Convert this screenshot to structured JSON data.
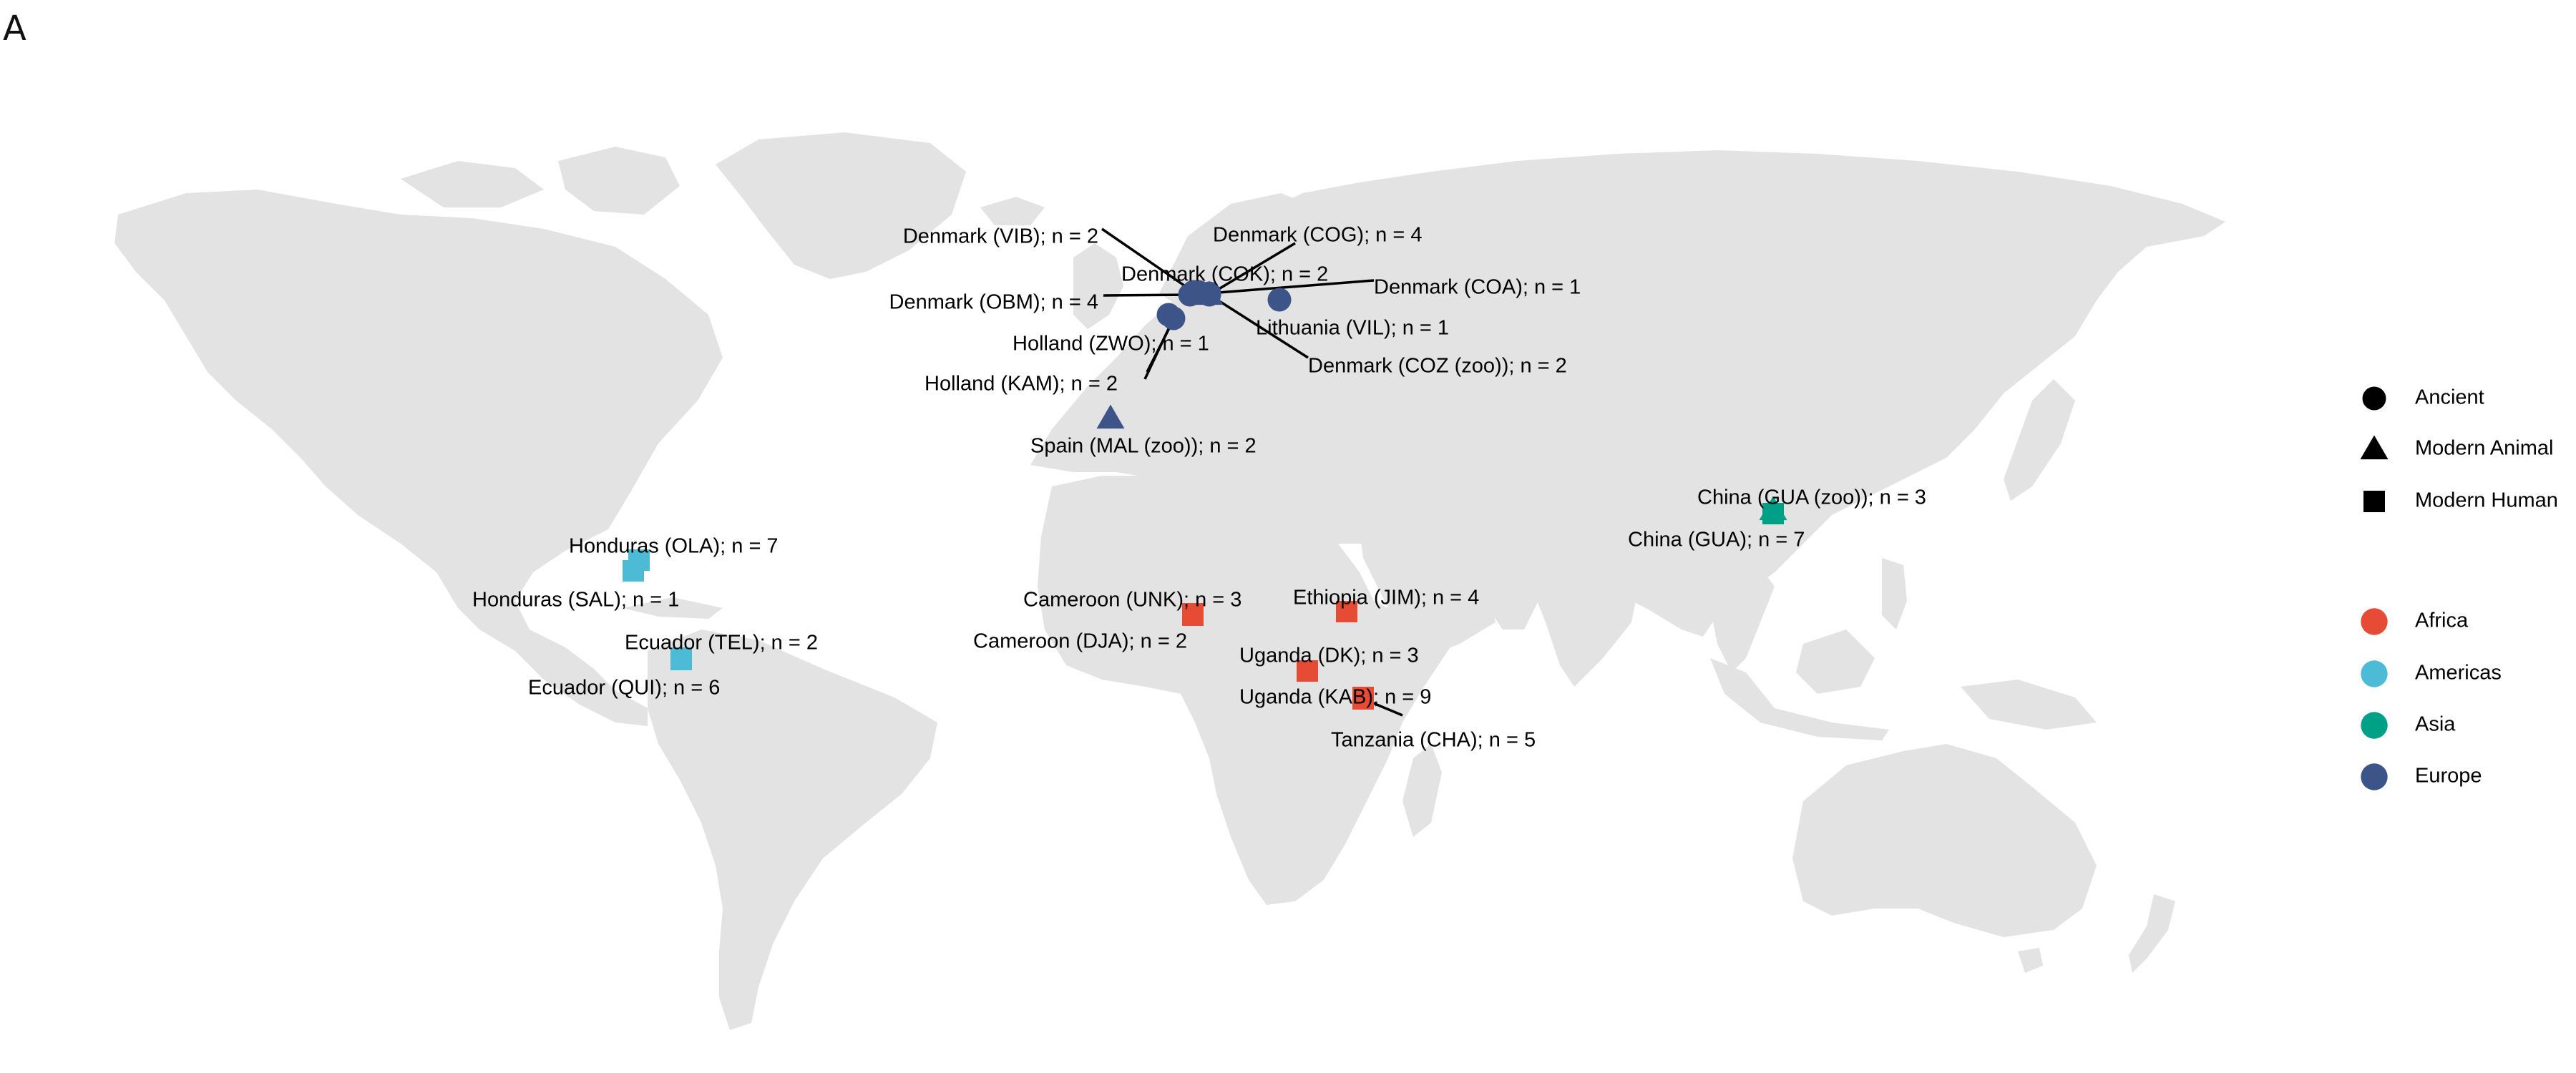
{
  "panel_label": "A",
  "colors": {
    "land": "#e3e3e3",
    "Africa": "#E64B35",
    "Americas": "#4DBBD5",
    "Asia": "#00A087",
    "Europe": "#3C5488",
    "legend_shape": "#000000"
  },
  "legend": {
    "shapes": [
      {
        "label": "Ancient",
        "shape": "circle"
      },
      {
        "label": "Modern Animal",
        "shape": "triangle"
      },
      {
        "label": "Modern Human",
        "shape": "square"
      }
    ],
    "regions": [
      {
        "label": "Africa",
        "color": "#E64B35"
      },
      {
        "label": "Americas",
        "color": "#4DBBD5"
      },
      {
        "label": "Asia",
        "color": "#00A087"
      },
      {
        "label": "Europe",
        "color": "#3C5488"
      }
    ]
  },
  "sites": [
    {
      "label": "Denmark (VIB); n = 2",
      "region": "Europe",
      "type": "Ancient"
    },
    {
      "label": "Denmark (COG); n = 4",
      "region": "Europe",
      "type": "Ancient"
    },
    {
      "label": "Denmark (COK); n = 2",
      "region": "Europe",
      "type": "Ancient"
    },
    {
      "label": "Denmark (COA); n = 1",
      "region": "Europe",
      "type": "Ancient"
    },
    {
      "label": "Denmark (OBM); n = 4",
      "region": "Europe",
      "type": "Ancient"
    },
    {
      "label": "Lithuania (VIL); n = 1",
      "region": "Europe",
      "type": "Ancient"
    },
    {
      "label": "Holland (ZWO); n = 1",
      "region": "Europe",
      "type": "Ancient"
    },
    {
      "label": "Denmark (COZ (zoo)); n = 2",
      "region": "Europe",
      "type": "Modern Animal"
    },
    {
      "label": "Holland (KAM); n = 2",
      "region": "Europe",
      "type": "Ancient"
    },
    {
      "label": "Spain (MAL (zoo)); n = 2",
      "region": "Europe",
      "type": "Modern Animal"
    },
    {
      "label": "China (GUA (zoo)); n = 3",
      "region": "Asia",
      "type": "Modern Animal"
    },
    {
      "label": "China (GUA); n = 7",
      "region": "Asia",
      "type": "Modern Human"
    },
    {
      "label": "Honduras (OLA); n = 7",
      "region": "Americas",
      "type": "Modern Human"
    },
    {
      "label": "Honduras (SAL); n = 1",
      "region": "Americas",
      "type": "Modern Human"
    },
    {
      "label": "Ecuador (TEL); n = 2",
      "region": "Americas",
      "type": "Modern Human"
    },
    {
      "label": "Ecuador (QUI); n = 6",
      "region": "Americas",
      "type": "Modern Human"
    },
    {
      "label": "Cameroon (UNK); n = 3",
      "region": "Africa",
      "type": "Modern Human"
    },
    {
      "label": "Cameroon (DJA); n = 2",
      "region": "Africa",
      "type": "Modern Human"
    },
    {
      "label": "Ethiopia (JIM); n = 4",
      "region": "Africa",
      "type": "Modern Human"
    },
    {
      "label": "Uganda (DK); n = 3",
      "region": "Africa",
      "type": "Modern Human"
    },
    {
      "label": "Uganda (KAB); n = 9",
      "region": "Africa",
      "type": "Modern Human"
    },
    {
      "label": "Tanzania (CHA); n = 5",
      "region": "Africa",
      "type": "Modern Human"
    }
  ]
}
